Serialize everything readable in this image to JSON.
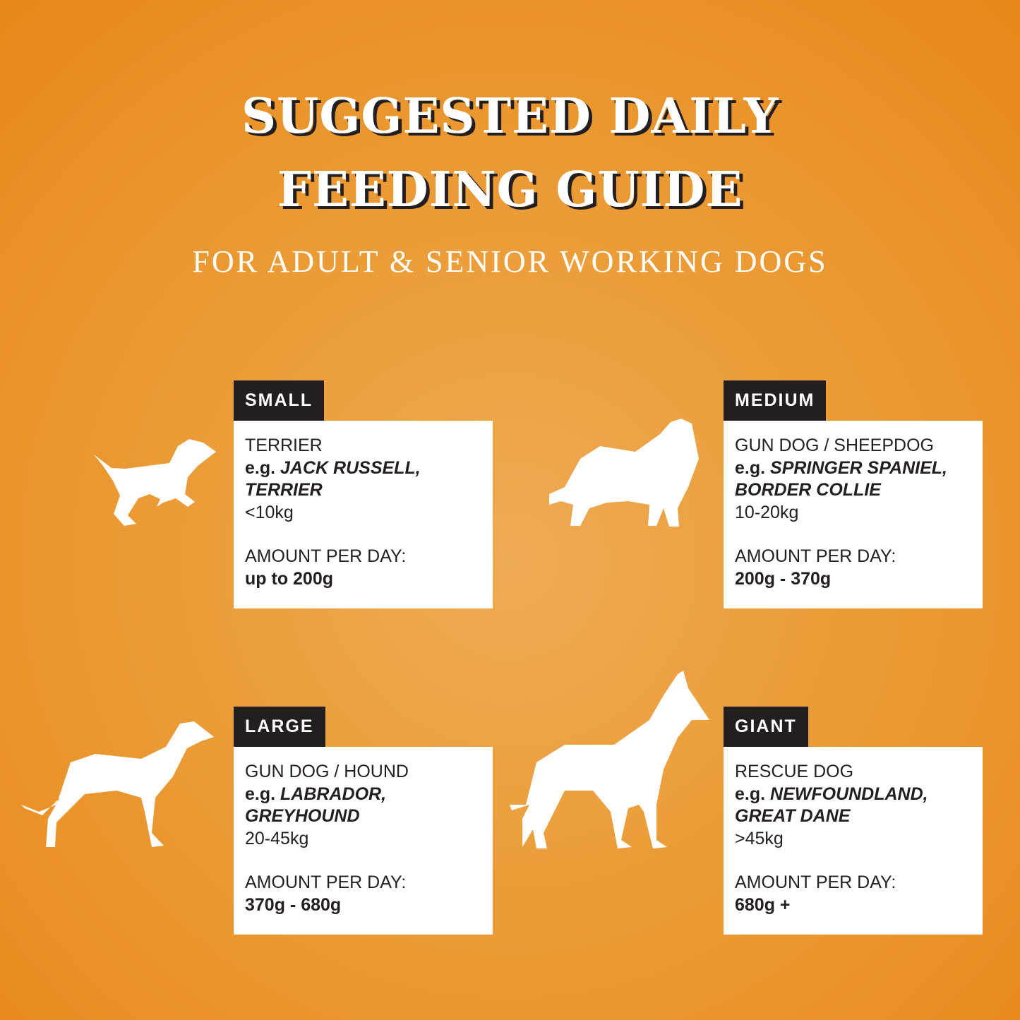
{
  "header": {
    "title_lines": [
      "SUGGESTED DAILY",
      "FEEDING GUIDE"
    ],
    "subtitle": "FOR ADULT & SENIOR WORKING DOGS"
  },
  "cards": [
    {
      "label": "SMALL",
      "type": "TERRIER",
      "eg": "e.g.",
      "breeds": [
        "JACK RUSSELL,",
        "TERRIER"
      ],
      "weight": "<10kg",
      "amount_label": "AMOUNT PER DAY:",
      "amount": "up to 200g"
    },
    {
      "label": "MEDIUM",
      "type": "GUN DOG / SHEEPDOG",
      "eg": "e.g.",
      "breeds": [
        "SPRINGER SPANIEL,",
        "BORDER COLLIE"
      ],
      "weight": "10-20kg",
      "amount_label": "AMOUNT PER DAY:",
      "amount": "200g - 370g"
    },
    {
      "label": "LARGE",
      "type": "GUN DOG / HOUND",
      "eg": "e.g.",
      "breeds": [
        "LABRADOR,",
        "GREYHOUND"
      ],
      "weight": "20-45kg",
      "amount_label": "AMOUNT PER DAY:",
      "amount": "370g - 680g"
    },
    {
      "label": "GIANT",
      "type": "RESCUE DOG",
      "eg": "e.g.",
      "breeds": [
        "NEWFOUNDLAND,",
        "GREAT DANE"
      ],
      "weight": ">45kg",
      "amount_label": "AMOUNT PER DAY:",
      "amount": "680g +"
    }
  ]
}
